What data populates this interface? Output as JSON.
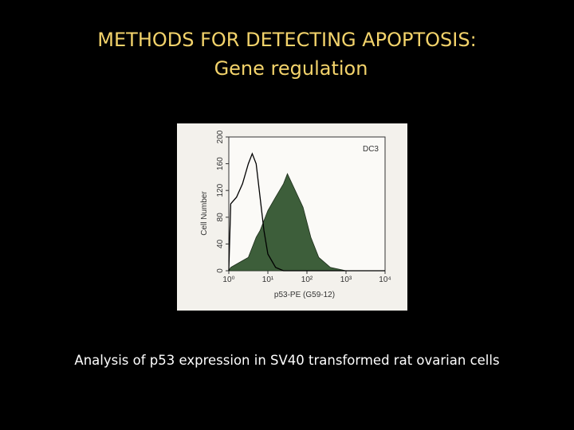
{
  "slide": {
    "title": "METHODS FOR DETECTING APOPTOSIS:",
    "subtitle": "Gene regulation",
    "caption": "Analysis of p53 expression in SV40 transformed rat ovarian cells"
  },
  "chart_data": {
    "type": "area",
    "annotation": "DC3",
    "y_label": "Cell Number",
    "x_label": "p53-PE (G59-12)",
    "x": [
      1,
      1.12,
      1.58,
      2.24,
      3.16,
      3.98,
      5.01,
      6.31,
      7.94,
      10,
      15.8,
      25.1,
      31.6,
      50.1,
      79.4,
      126,
      200,
      398,
      1000,
      10000
    ],
    "series": [
      {
        "color": "#000000",
        "filled": false,
        "values": [
          0,
          100,
          110,
          130,
          160,
          175,
          160,
          110,
          60,
          25,
          5,
          0,
          0,
          0,
          0,
          0,
          0,
          0,
          0,
          0
        ]
      },
      {
        "color": "#3d5e3a",
        "filled": true,
        "values": [
          0,
          5,
          10,
          15,
          20,
          35,
          50,
          60,
          75,
          90,
          110,
          130,
          145,
          120,
          95,
          50,
          20,
          5,
          0,
          0
        ]
      }
    ],
    "xlog": true,
    "xlim": [
      1,
      10000
    ],
    "xticks": [
      {
        "value": 1,
        "label": "10⁰"
      },
      {
        "value": 10,
        "label": "10¹"
      },
      {
        "value": 100,
        "label": "10²"
      },
      {
        "value": 1000,
        "label": "10³"
      },
      {
        "value": 10000,
        "label": "10⁴"
      }
    ],
    "ylim": [
      0,
      200
    ],
    "yticks": [
      0,
      40,
      80,
      120,
      160,
      200
    ]
  }
}
